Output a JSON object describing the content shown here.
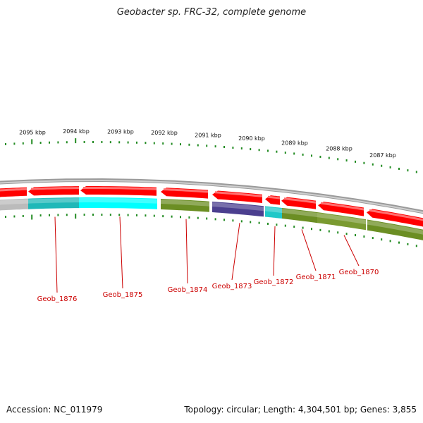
{
  "title": "Geobacter sp. FRC-32, complete genome",
  "accession": "Accession: NC_011979",
  "summary": "Topology: circular; Length: 4,304,501 bp; Genes: 3,855",
  "colors": {
    "backbone": "#888888",
    "forward_gene": "#ff0000",
    "cds_cyan": "#00ffff",
    "cds_olive": "#6b8e23",
    "cds_navy": "#4b3f8f",
    "cds_gray": "#bbbbbb",
    "ticks": "#228b22",
    "labels": "#cc0000"
  },
  "position_ticks": [
    "2095 kbp",
    "2094 kbp",
    "2093 kbp",
    "2092 kbp",
    "2091 kbp",
    "2090 kbp",
    "2089 kbp",
    "2088 kbp",
    "2087 kbp"
  ],
  "gene_labels": [
    "Geob_1876",
    "Geob_1875",
    "Geob_1874",
    "Geob_1873",
    "Geob_1872",
    "Geob_1871",
    "Geob_1870"
  ]
}
